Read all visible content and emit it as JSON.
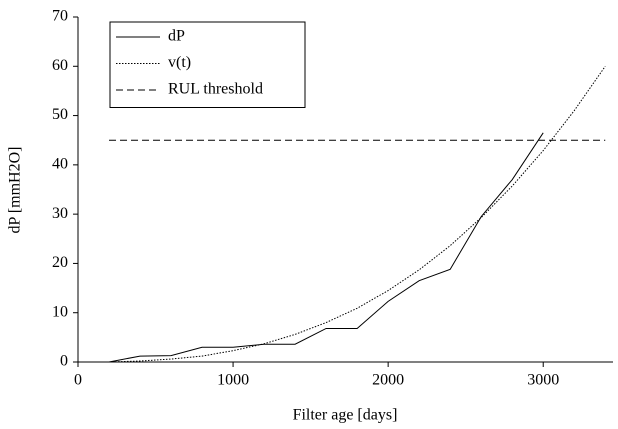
{
  "chart_data": {
    "type": "line",
    "x_label": "Filter age [days]",
    "y_label": "dP [mmH2O]",
    "xlim": [
      0,
      3450
    ],
    "xticks": [
      0,
      1000,
      2000,
      3000
    ],
    "ylim": [
      0,
      70
    ],
    "yticks": [
      0,
      10,
      20,
      30,
      40,
      50,
      60,
      70
    ],
    "legend": "top-left",
    "series": [
      {
        "name": "dP",
        "color": "#000000",
        "style": "solid",
        "x": [
          200,
          400,
          600,
          800,
          1000,
          1200,
          1400,
          1600,
          1800,
          2000,
          2200,
          2400,
          2600,
          2800,
          3000
        ],
        "values": [
          0,
          1.2,
          1.3,
          3,
          3,
          3.6,
          3.6,
          6.8,
          6.8,
          12.3,
          16.5,
          18.8,
          29.5,
          37,
          46.5
        ]
      },
      {
        "name": "v(t)",
        "color": "#000000",
        "style": "dotted",
        "x": [
          200,
          400,
          600,
          800,
          1000,
          1200,
          1400,
          1600,
          1800,
          2000,
          2200,
          2400,
          2600,
          2800,
          3000,
          3200,
          3400
        ],
        "values": [
          0,
          0.2,
          0.6,
          1.2,
          2.3,
          3.7,
          5.6,
          8.0,
          10.9,
          14.5,
          18.7,
          23.6,
          29.3,
          35.7,
          42.9,
          51.0,
          60
        ]
      },
      {
        "name": "RUL threshold",
        "color": "#000000",
        "style": "dashed",
        "x": [
          200,
          3400
        ],
        "values": [
          45,
          45
        ]
      }
    ]
  }
}
